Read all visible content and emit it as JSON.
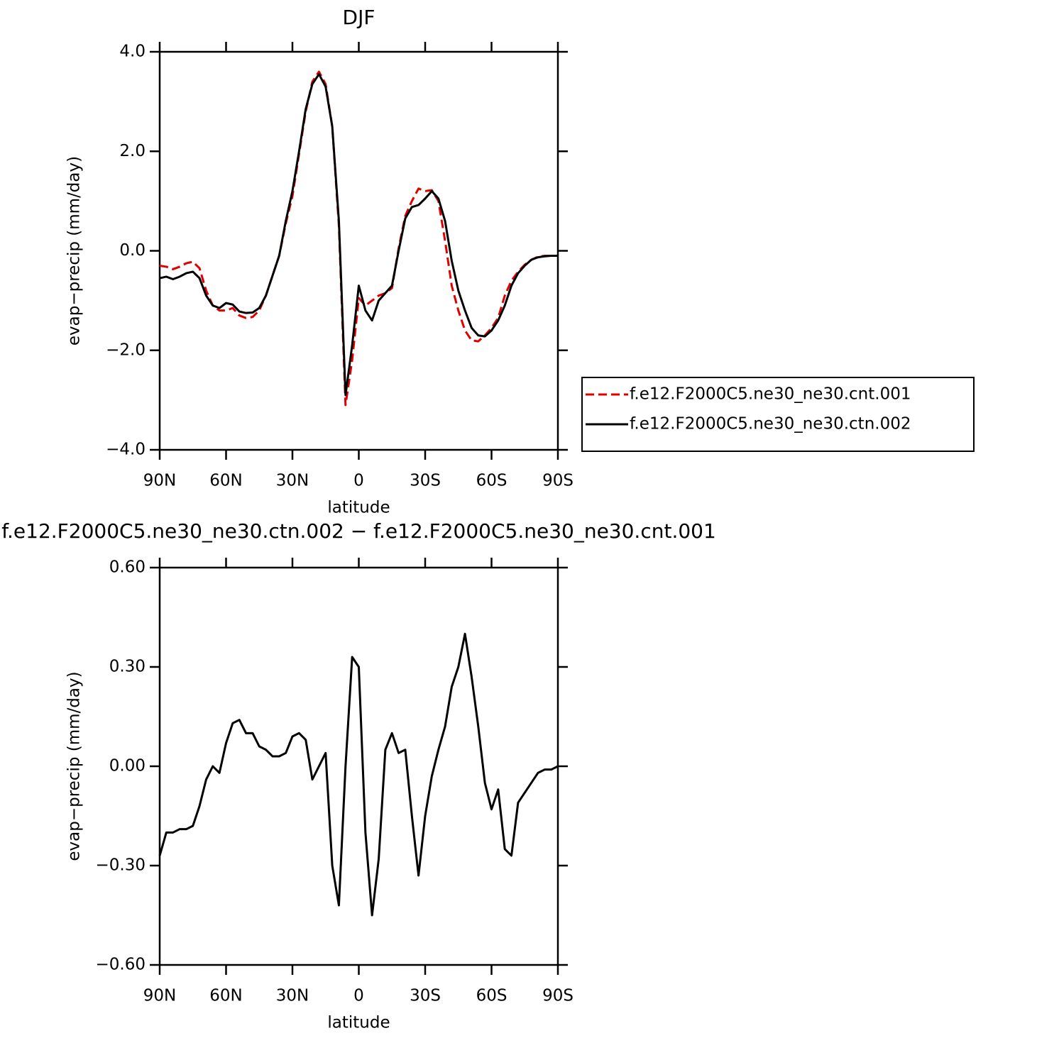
{
  "chart_data": [
    {
      "type": "line",
      "title": "DJF",
      "xlabel": "latitude",
      "ylabel": "evap−precip (mm/day)",
      "x": [
        90,
        87,
        84,
        81,
        78,
        75,
        72,
        69,
        66,
        63,
        60,
        57,
        54,
        51,
        48,
        45,
        42,
        39,
        36,
        33,
        30,
        27,
        24,
        21,
        18,
        15,
        12,
        9,
        6,
        3,
        0,
        -3,
        -6,
        -9,
        -12,
        -15,
        -18,
        -21,
        -24,
        -27,
        -30,
        -33,
        -36,
        -39,
        -42,
        -45,
        -48,
        -51,
        -54,
        -57,
        -60,
        -63,
        -66,
        -69,
        -72,
        -75,
        -78,
        -81,
        -84,
        -87,
        -90
      ],
      "xlim": [
        90,
        -90
      ],
      "xticks": [
        {
          "value": 90,
          "label": "90N"
        },
        {
          "value": 60,
          "label": "60N"
        },
        {
          "value": 30,
          "label": "30N"
        },
        0,
        {
          "value": -30,
          "label": "30S"
        },
        {
          "value": -60,
          "label": "60S"
        },
        {
          "value": -90,
          "label": "90S"
        }
      ],
      "ylim": [
        -4,
        4
      ],
      "yticks": [
        {
          "value": -4,
          "label": "−4.0"
        },
        {
          "value": -2,
          "label": "−2.0"
        },
        {
          "value": 0,
          "label": "0.0"
        },
        {
          "value": 2,
          "label": "2.0"
        },
        {
          "value": 4,
          "label": "4.0"
        }
      ],
      "grid": false,
      "legend": "right",
      "series": [
        {
          "name": "f.e12.F2000C5.ne30_ne30.cnt.001",
          "color": "#e00000",
          "dash": true,
          "values": [
            -0.3,
            -0.32,
            -0.37,
            -0.32,
            -0.25,
            -0.22,
            -0.35,
            -0.8,
            -1.1,
            -1.2,
            -1.2,
            -1.15,
            -1.3,
            -1.35,
            -1.33,
            -1.2,
            -0.9,
            -0.5,
            -0.1,
            0.55,
            1.1,
            1.95,
            2.8,
            3.4,
            3.6,
            3.35,
            2.5,
            0.5,
            -3.1,
            -2.2,
            -0.95,
            -1.1,
            -1.0,
            -0.9,
            -0.85,
            -0.75,
            0.05,
            0.7,
            1.0,
            1.25,
            1.2,
            1.22,
            1.0,
            0.2,
            -0.7,
            -1.2,
            -1.6,
            -1.8,
            -1.82,
            -1.7,
            -1.55,
            -1.35,
            -0.9,
            -0.6,
            -0.42,
            -0.28,
            -0.18,
            -0.12,
            -0.1,
            -0.1,
            -0.1
          ]
        },
        {
          "name": "f.e12.F2000C5.ne30_ne30.ctn.002",
          "color": "#000000",
          "dash": false,
          "values": [
            -0.55,
            -0.52,
            -0.57,
            -0.52,
            -0.45,
            -0.42,
            -0.55,
            -0.9,
            -1.1,
            -1.15,
            -1.05,
            -1.08,
            -1.22,
            -1.25,
            -1.24,
            -1.15,
            -0.9,
            -0.5,
            -0.1,
            0.6,
            1.2,
            2.0,
            2.85,
            3.35,
            3.55,
            3.3,
            2.5,
            0.6,
            -2.9,
            -1.9,
            -0.7,
            -1.2,
            -1.4,
            -1.0,
            -0.85,
            -0.7,
            0.0,
            0.65,
            0.88,
            0.92,
            1.05,
            1.2,
            1.05,
            0.6,
            -0.2,
            -0.8,
            -1.2,
            -1.55,
            -1.7,
            -1.72,
            -1.6,
            -1.4,
            -1.1,
            -0.7,
            -0.45,
            -0.3,
            -0.18,
            -0.13,
            -0.11,
            -0.1,
            -0.1
          ]
        }
      ]
    },
    {
      "type": "line",
      "title": "f.e12.F2000C5.ne30_ne30.ctn.002 − f.e12.F2000C5.ne30_ne30.cnt.001",
      "xlabel": "latitude",
      "ylabel": "evap−precip (mm/day)",
      "x": [
        90,
        87,
        84,
        81,
        78,
        75,
        72,
        69,
        66,
        63,
        60,
        57,
        54,
        51,
        48,
        45,
        42,
        39,
        36,
        33,
        30,
        27,
        24,
        21,
        18,
        15,
        12,
        9,
        6,
        3,
        0,
        -3,
        -6,
        -9,
        -12,
        -15,
        -18,
        -21,
        -24,
        -27,
        -30,
        -33,
        -36,
        -39,
        -42,
        -45,
        -48,
        -51,
        -54,
        -57,
        -60,
        -63,
        -66,
        -69,
        -72,
        -75,
        -78,
        -81,
        -84,
        -87,
        -90
      ],
      "xlim": [
        90,
        -90
      ],
      "xticks": [
        {
          "value": 90,
          "label": "90N"
        },
        {
          "value": 60,
          "label": "60N"
        },
        {
          "value": 30,
          "label": "30N"
        },
        0,
        {
          "value": -30,
          "label": "30S"
        },
        {
          "value": -60,
          "label": "60S"
        },
        {
          "value": -90,
          "label": "90S"
        }
      ],
      "ylim": [
        -0.6,
        0.6
      ],
      "yticks": [
        {
          "value": -0.6,
          "label": "−0.60"
        },
        {
          "value": -0.3,
          "label": "−0.30"
        },
        {
          "value": 0,
          "label": "0.00"
        },
        {
          "value": 0.3,
          "label": "0.30"
        },
        {
          "value": 0.6,
          "label": "0.60"
        }
      ],
      "grid": false,
      "series": [
        {
          "color": "#000000",
          "dash": false,
          "values": [
            -0.27,
            -0.2,
            -0.2,
            -0.19,
            -0.19,
            -0.18,
            -0.12,
            -0.04,
            0.0,
            -0.02,
            0.07,
            0.13,
            0.14,
            0.1,
            0.1,
            0.06,
            0.05,
            0.03,
            0.03,
            0.04,
            0.09,
            0.1,
            0.08,
            -0.04,
            0.0,
            0.04,
            -0.3,
            -0.42,
            0.0,
            0.33,
            0.3,
            -0.2,
            -0.45,
            -0.28,
            0.05,
            0.1,
            0.04,
            0.05,
            -0.15,
            -0.33,
            -0.15,
            -0.03,
            0.05,
            0.12,
            0.24,
            0.3,
            0.4,
            0.27,
            0.12,
            -0.05,
            -0.13,
            -0.07,
            -0.25,
            -0.27,
            -0.11,
            -0.08,
            -0.05,
            -0.02,
            -0.01,
            -0.01,
            0.0
          ]
        }
      ]
    }
  ]
}
